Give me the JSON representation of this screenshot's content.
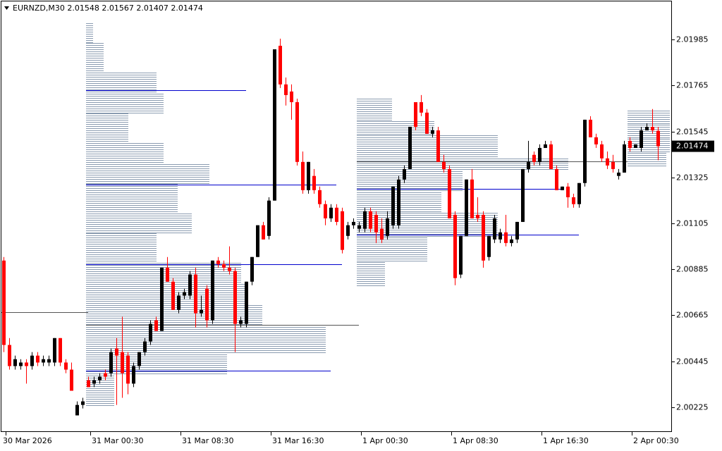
{
  "chart_data": {
    "type": "candlestick",
    "symbol": "EURNZD,M30",
    "bull_color": "#000000",
    "bear_color": "#ff0000",
    "profile_color": "#8a9bb0",
    "ylim": [
      2.0011,
      2.02174
    ],
    "yticks": [
      2.00225,
      2.00445,
      2.00665,
      2.00885,
      2.01105,
      2.01325,
      2.01545,
      2.01765,
      2.01985
    ],
    "categories": [
      "30 Mar 2026",
      null,
      null,
      null,
      null,
      null,
      null,
      null,
      null,
      null,
      null,
      null,
      null,
      null,
      null,
      "31 Mar 00:30",
      null,
      null,
      null,
      null,
      null,
      null,
      null,
      null,
      null,
      null,
      null,
      null,
      null,
      null,
      null,
      "31 Mar 08:30",
      null,
      null,
      null,
      null,
      null,
      null,
      null,
      null,
      null,
      null,
      null,
      null,
      null,
      null,
      null,
      "31 Mar 16:30",
      null,
      null,
      null,
      null,
      null,
      null,
      null,
      null,
      null,
      null,
      null,
      null,
      null,
      null,
      null,
      "1 Apr 00:30",
      null,
      null,
      null,
      null,
      null,
      null,
      null,
      null,
      null,
      null,
      null,
      null,
      null,
      null,
      null,
      "1 Apr 08:30",
      null,
      null,
      null,
      null,
      null,
      null,
      null,
      null,
      null,
      null,
      null,
      null,
      null,
      null,
      null,
      "1 Apr 16:30",
      null,
      null,
      null,
      null,
      null,
      null,
      null,
      null,
      null,
      null,
      null,
      null,
      null,
      null,
      null,
      "2 Apr 00:30",
      null,
      null,
      null,
      null,
      null
    ],
    "open": [
      2.00927,
      2.00523,
      2.00422,
      2.00422,
      2.00439,
      2.00422,
      2.00472,
      2.00439,
      2.00439,
      2.00439,
      2.00556,
      2.00439,
      2.00405,
      2.00186,
      2.00236,
      2.00354,
      2.00338,
      2.00354,
      2.00388,
      2.00388,
      2.00506,
      2.00489,
      2.00472,
      2.00338,
      2.00422,
      2.00489,
      2.0054,
      2.00641,
      2.0059,
      2.00893,
      2.00826,
      2.00691,
      2.00759,
      2.00759,
      2.0086,
      2.00675,
      2.00792,
      2.00641,
      2.00927,
      2.0091,
      2.00893,
      2.00877,
      2.00624,
      2.00624,
      2.00826,
      2.00944,
      2.01096,
      2.01045,
      2.01214,
      2.01955,
      2.0177,
      2.01736,
      2.01685,
      2.01399,
      2.01264,
      2.01332,
      2.01264,
      2.01197,
      2.01129,
      2.0118,
      2.01163,
      2.01045,
      2.01096,
      2.01079,
      2.01079,
      2.01163,
      2.01146,
      2.01079,
      2.01045,
      2.01096,
      2.01096,
      2.01315,
      2.01365,
      2.01685,
      2.01685,
      2.01635,
      2.01534,
      2.0155,
      2.01399,
      2.01365,
      2.01146,
      2.0086,
      2.01045,
      2.01315,
      2.01146,
      2.01146,
      2.00944,
      2.01028,
      2.01028,
      2.01062,
      2.01011,
      2.01028,
      2.01112,
      2.01365,
      2.01433,
      2.01399,
      2.01466,
      2.01483,
      2.01365,
      2.01264,
      2.01281,
      2.0123,
      2.01197,
      2.01298,
      2.01601,
      2.01517,
      2.01483,
      2.01416,
      2.01399,
      2.01332,
      2.01348,
      2.015,
      2.01466,
      2.01466,
      2.0155,
      2.01567,
      2.01548
    ],
    "high": [
      2.00944,
      2.00556,
      2.00472,
      2.00455,
      2.00455,
      2.00489,
      2.00489,
      2.00472,
      2.00472,
      2.00556,
      2.00556,
      2.00455,
      2.00439,
      2.00253,
      2.0027,
      2.00371,
      2.00371,
      2.00388,
      2.00405,
      2.00506,
      2.00556,
      2.00658,
      2.00489,
      2.00439,
      2.00489,
      2.00556,
      2.00641,
      2.00658,
      2.00893,
      2.00944,
      2.00843,
      2.00776,
      2.00792,
      2.00877,
      2.00893,
      2.00759,
      2.00809,
      2.00927,
      2.00944,
      2.00927,
      2.00995,
      2.00893,
      2.00658,
      2.00826,
      2.00944,
      2.01096,
      2.01112,
      2.0123,
      2.01938,
      2.01989,
      2.01803,
      2.0177,
      2.01702,
      2.01449,
      2.01399,
      2.01365,
      2.01281,
      2.01214,
      2.01197,
      2.01197,
      2.0118,
      2.01112,
      2.01129,
      2.01112,
      2.0118,
      2.0118,
      2.01163,
      2.01129,
      2.01163,
      2.01281,
      2.01332,
      2.01382,
      2.01567,
      2.01685,
      2.01719,
      2.01652,
      2.01567,
      2.01567,
      2.01433,
      2.01382,
      2.01163,
      2.01045,
      2.01315,
      2.01365,
      2.0123,
      2.01163,
      2.01045,
      2.01146,
      2.01079,
      2.01146,
      2.01045,
      2.01112,
      2.01365,
      2.015,
      2.01449,
      2.01483,
      2.015,
      2.015,
      2.01382,
      2.01281,
      2.01298,
      2.01247,
      2.01298,
      2.01601,
      2.01618,
      2.01534,
      2.015,
      2.01449,
      2.01433,
      2.01365,
      2.015,
      2.01517,
      2.01483,
      2.01567,
      2.01584,
      2.01652,
      2.01567
    ],
    "low": [
      2.00489,
      2.00405,
      2.00405,
      2.00405,
      2.00338,
      2.00405,
      2.00422,
      2.00422,
      2.00422,
      2.00422,
      2.00422,
      2.00388,
      2.00304,
      2.00186,
      2.00219,
      2.00321,
      2.00321,
      2.00338,
      2.00354,
      2.00371,
      2.00236,
      2.0027,
      2.00287,
      2.00321,
      2.00405,
      2.00472,
      2.00523,
      2.0059,
      2.0059,
      2.00826,
      2.00691,
      2.00675,
      2.00742,
      2.00742,
      2.00607,
      2.00658,
      2.00607,
      2.00624,
      2.00893,
      2.00877,
      2.0086,
      2.00489,
      2.00607,
      2.00607,
      2.00809,
      2.00944,
      2.01028,
      2.01028,
      2.01214,
      2.01753,
      2.01669,
      2.01601,
      2.01382,
      2.01247,
      2.01247,
      2.01247,
      2.0118,
      2.01096,
      2.01112,
      2.01096,
      2.00961,
      2.01028,
      2.01079,
      2.01062,
      2.01062,
      2.01062,
      2.01011,
      2.01011,
      2.01028,
      2.01079,
      2.01079,
      2.01298,
      2.01365,
      2.0155,
      2.01618,
      2.01534,
      2.01517,
      2.01399,
      2.01348,
      2.01129,
      2.00809,
      2.00843,
      2.01045,
      2.01129,
      2.01112,
      2.00893,
      2.00927,
      2.01011,
      2.01011,
      2.00995,
      2.00995,
      2.01011,
      2.01112,
      2.01348,
      2.01382,
      2.01382,
      2.01466,
      2.01365,
      2.01264,
      2.01264,
      2.0118,
      2.0118,
      2.0118,
      2.01281,
      2.01517,
      2.01466,
      2.01399,
      2.01365,
      2.01348,
      2.01315,
      2.01348,
      2.01449,
      2.01466,
      2.01449,
      2.0155,
      2.01534,
      2.01407
    ],
    "close": [
      2.00523,
      2.00422,
      2.00455,
      2.00439,
      2.00422,
      2.00472,
      2.00439,
      2.00455,
      2.00455,
      2.00556,
      2.00439,
      2.00405,
      2.00304,
      2.00236,
      2.00253,
      2.00321,
      2.00354,
      2.00371,
      2.00371,
      2.00489,
      2.00472,
      2.00388,
      2.00338,
      2.00422,
      2.00489,
      2.0054,
      2.00624,
      2.0059,
      2.00893,
      2.00826,
      2.00691,
      2.00759,
      2.00776,
      2.0086,
      2.00675,
      2.00691,
      2.00641,
      2.00927,
      2.0091,
      2.00893,
      2.00877,
      2.00624,
      2.00641,
      2.00826,
      2.00944,
      2.01096,
      2.01028,
      2.01214,
      2.01938,
      2.0177,
      2.01719,
      2.01685,
      2.01399,
      2.01264,
      2.01399,
      2.01264,
      2.01197,
      2.01129,
      2.0118,
      2.01112,
      2.00978,
      2.01096,
      2.01112,
      2.01096,
      2.01163,
      2.01079,
      2.01062,
      2.01028,
      2.01129,
      2.01281,
      2.01315,
      2.01365,
      2.01567,
      2.01567,
      2.01635,
      2.01534,
      2.0155,
      2.01399,
      2.01365,
      2.01129,
      2.00843,
      2.01045,
      2.01315,
      2.01129,
      2.01129,
      2.00927,
      2.01045,
      2.01129,
      2.01062,
      2.01011,
      2.01028,
      2.01112,
      2.01365,
      2.01399,
      2.01399,
      2.01466,
      2.01483,
      2.01365,
      2.01264,
      2.01281,
      2.0123,
      2.01197,
      2.01298,
      2.01601,
      2.01517,
      2.01483,
      2.01416,
      2.01382,
      2.01365,
      2.01348,
      2.01483,
      2.01466,
      2.01483,
      2.0155,
      2.01567,
      2.0155,
      2.01474
    ],
    "profiles": [
      {
        "start": 0,
        "bins": [],
        "values": [],
        "lines": [
          {
            "price": 2.00681,
            "end": 15,
            "color": "#555555"
          }
        ]
      },
      {
        "start": 15,
        "bins": [
          2.00236,
          2.00388,
          2.00489,
          2.00624,
          2.00725,
          2.00826,
          2.00927,
          2.01062,
          2.01163,
          2.01298,
          2.01399,
          2.015,
          2.01635,
          2.01736,
          2.01837,
          2.01972,
          2.02066
        ],
        "values": [
          40,
          200,
          340,
          250,
          230,
          220,
          100,
          150,
          130,
          175,
          110,
          60,
          110,
          100,
          25,
          10
        ],
        "lines": [
          {
            "price": 2.01743,
            "end": 43,
            "color": "#0000cd"
          },
          {
            "price": 2.01291,
            "end": 59,
            "color": "#0000cd"
          },
          {
            "price": 2.0091,
            "end": 60,
            "color": "#0000cd"
          },
          {
            "price": 2.00401,
            "end": 58,
            "color": "#0000cd"
          },
          {
            "price": 2.0062,
            "end": 63,
            "color": "#555555"
          }
        ]
      },
      {
        "start": 63,
        "bins": [
          2.00809,
          2.00927,
          2.01045,
          2.01163,
          2.01264,
          2.01365,
          2.01416,
          2.01534,
          2.01601,
          2.01709
        ],
        "values": [
          40,
          100,
          200,
          120,
          150,
          300,
          200,
          110,
          50
        ],
        "lines": [
          {
            "price": 2.0127,
            "end": 99,
            "color": "#0000cd"
          },
          {
            "price": 2.01052,
            "end": 102,
            "color": "#0000cd"
          },
          {
            "price": 2.01402,
            "end": 111,
            "color": "#555555"
          }
        ]
      },
      {
        "start": 111,
        "bins": [
          2.01382,
          2.01449,
          2.01517,
          2.01584,
          2.01652
        ],
        "values": [
          55,
          60,
          60,
          60
        ],
        "lines": []
      }
    ]
  }
}
